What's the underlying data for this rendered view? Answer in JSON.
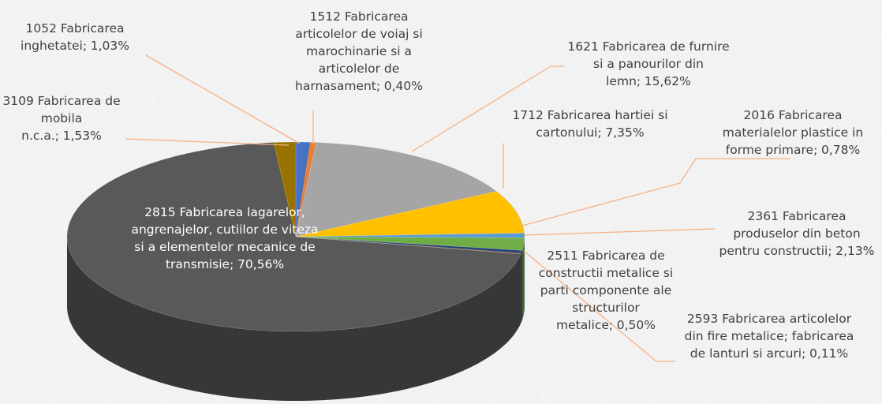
{
  "chart_data": {
    "type": "pie3d",
    "categories": [
      "1052 Fabricarea inghetatei;",
      "1512 Fabricarea articolelor de voiaj si marochinarie si a articolelor de harnasament;",
      "1621 Fabricarea de furnire si a panourilor din lemn;",
      "1712 Fabricarea hartiei si cartonului;",
      "2016 Fabricarea materialelor plastice in forme primare;",
      "2361 Fabricarea produselor din beton pentru constructii;",
      "2511 Fabricarea de constructii metalice si parti componente ale structurilor metalice;",
      "2593 Fabricarea articolelor din fire metalice; fabricarea de lanturi si arcuri;",
      "2815 Fabricarea lagarelor, angrenajelor, cutiilor de viteza si a elementelor mecanice de transmisie;",
      "3109 Fabricarea de mobila n.c.a.;"
    ],
    "values": [
      1.03,
      0.4,
      15.62,
      7.35,
      0.78,
      2.13,
      0.5,
      0.11,
      70.56,
      1.53
    ],
    "value_labels": [
      "1,03%",
      "0,40%",
      "15,62%",
      "7,35%",
      "0,78%",
      "2,13%",
      "0,50%",
      "0,11%",
      "70,56%",
      "1,53%"
    ],
    "colors": [
      "#4472c4",
      "#ed7d31",
      "#a5a5a5",
      "#ffc000",
      "#5b9bd5",
      "#70ad47",
      "#264478",
      "#9e480e",
      "#595959",
      "#997300"
    ]
  }
}
